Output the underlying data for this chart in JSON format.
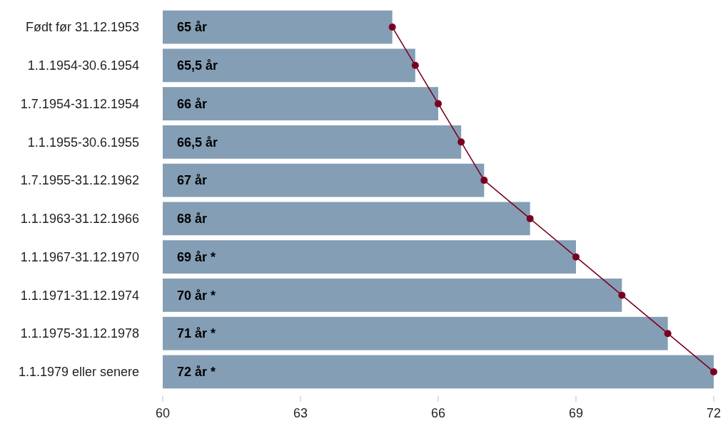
{
  "chart_data": {
    "type": "bar",
    "orientation": "horizontal",
    "categories": [
      "Født før 31.12.1953",
      "1.1.1954-30.6.1954",
      "1.7.1954-31.12.1954",
      "1.1.1955-30.6.1955",
      "1.7.1955-31.12.1962",
      "1.1.1963-31.12.1966",
      "1.1.1967-31.12.1970",
      "1.1.1971-31.12.1974",
      "1.1.1975-31.12.1978",
      "1.1.1979 eller senere"
    ],
    "series": [
      {
        "color": "#849eb5",
        "values": [
          65,
          65.5,
          66,
          66.5,
          67,
          68,
          69,
          70,
          71,
          72
        ],
        "value_labels": [
          "65 år",
          "65,5 år",
          "66 år",
          "66,5 år",
          "67 år",
          "68 år",
          "69 år *",
          "70 år *",
          "71 år *",
          "72 år *"
        ]
      },
      {
        "type": "line",
        "color": "#7a0020",
        "values": [
          65,
          65.5,
          66,
          66.5,
          67,
          68,
          69,
          70,
          71,
          72
        ]
      }
    ],
    "xlim": [
      60,
      72
    ],
    "xticks": [
      60,
      63,
      66,
      69,
      72
    ],
    "marker": "circle",
    "line_style": "solid",
    "grid": false
  }
}
